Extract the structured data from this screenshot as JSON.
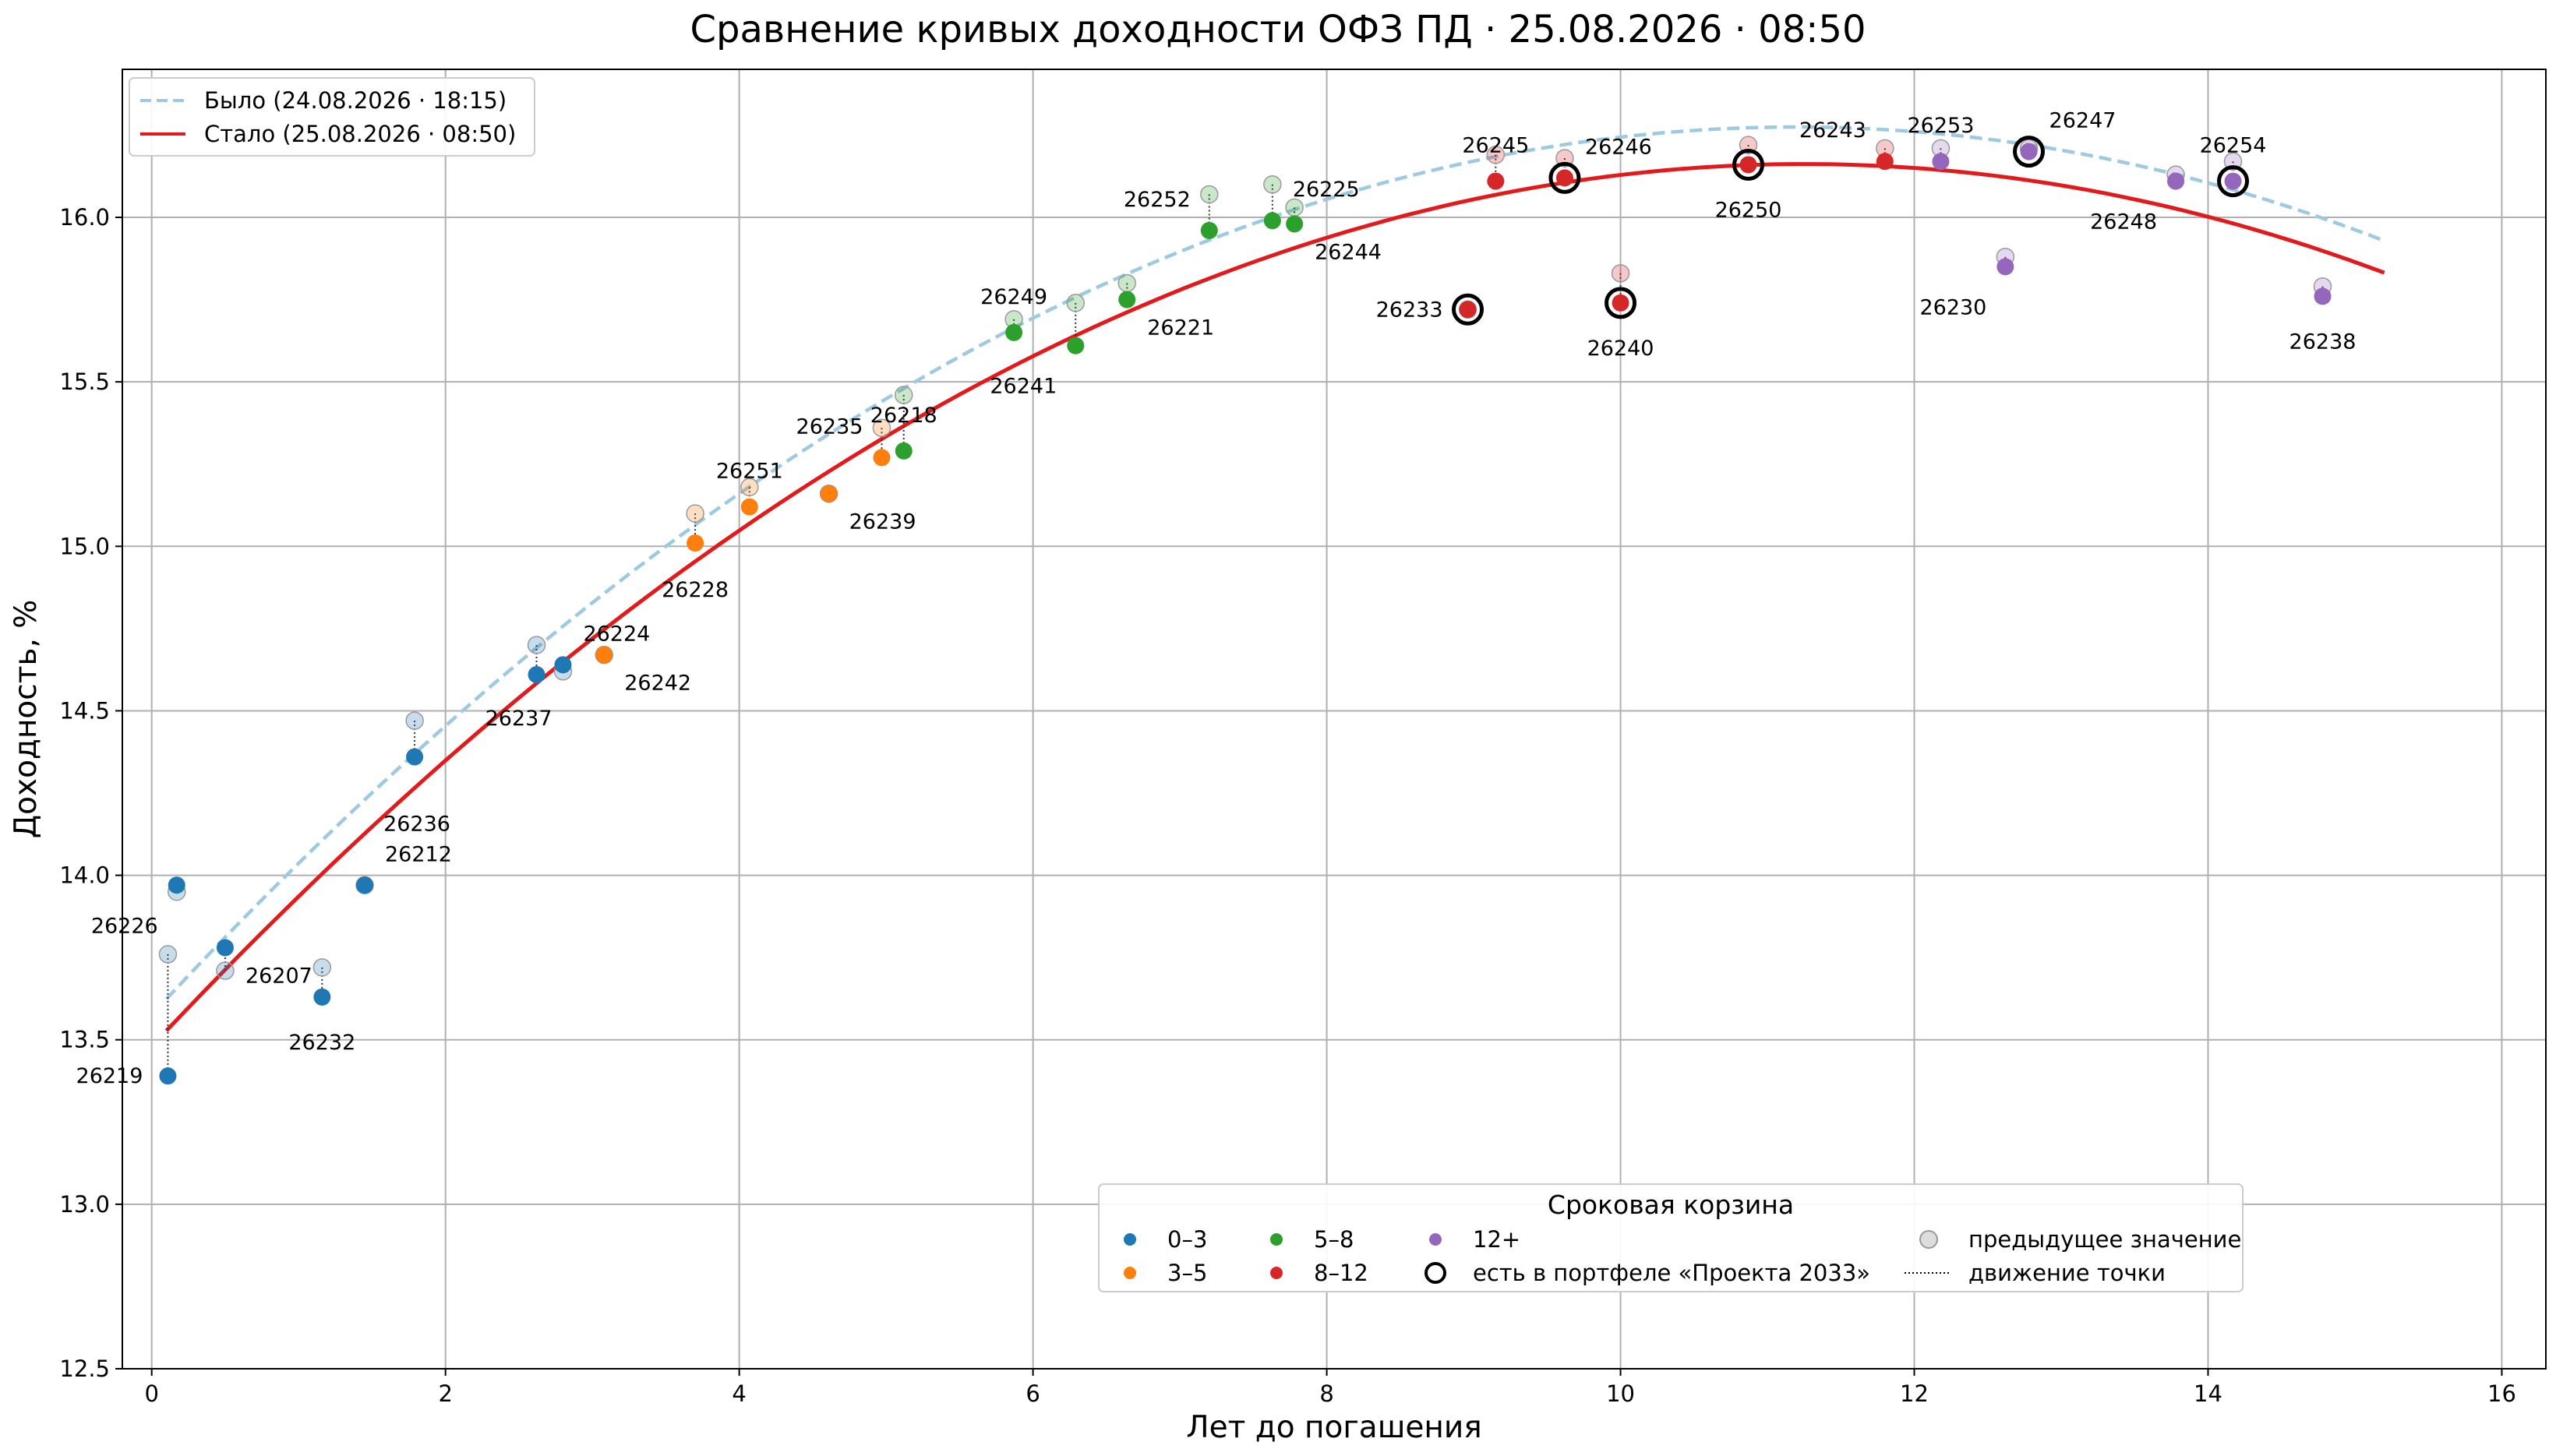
{
  "chart_data": {
    "type": "scatter",
    "title": "Сравнение кривых доходности ОФЗ ПД · 25.08.2026 · 08:50",
    "xlabel": "Лет до погашения",
    "ylabel": "Доходность, %",
    "xlim": [
      -0.2,
      16.3
    ],
    "ylim": [
      12.5,
      16.45
    ],
    "xticks": [
      0,
      2,
      4,
      6,
      8,
      10,
      12,
      14,
      16
    ],
    "yticks": [
      "12.5",
      "13.0",
      "13.5",
      "14.0",
      "14.5",
      "15.0",
      "15.5",
      "16.0"
    ],
    "grid": true,
    "legend_top_placement": "top-left",
    "legend_bottom_placement": "bottom-right",
    "curves": [
      {
        "name": "Было (24.08.2026 · 18:15)",
        "style": "dashed",
        "color": "#9ecae1",
        "coef": [
          13.576,
          0.4822,
          -0.02154
        ],
        "x_range": [
          0.1,
          15.2
        ]
      },
      {
        "name": "Стало (25.08.2026 · 08:50)",
        "style": "solid",
        "color": "#e31a1c",
        "coef": [
          13.48,
          0.4768,
          -0.02119
        ],
        "x_range": [
          0.1,
          15.2
        ]
      }
    ],
    "buckets": [
      {
        "name": "0–3",
        "color": "#1f77b4"
      },
      {
        "name": "3–5",
        "color": "#ff7f0e"
      },
      {
        "name": "5–8",
        "color": "#2ca02c"
      },
      {
        "name": "8–12",
        "color": "#d62728"
      },
      {
        "name": "12+",
        "color": "#9467bd"
      }
    ],
    "legend_extra": {
      "portfolio": "есть в портфеле «Проекта 2033»",
      "previous": "предыдущее значение",
      "movement": "движение точки"
    },
    "legend_title": "Сроковая корзина",
    "points": [
      {
        "label": "26219",
        "x": 0.11,
        "y": 13.39,
        "prev": 13.76,
        "bucket": 0,
        "portfolio": false,
        "lpos": "left"
      },
      {
        "label": "26226",
        "x": 0.17,
        "y": 13.97,
        "prev": 13.95,
        "bucket": 0,
        "portfolio": false,
        "lpos": "below-left"
      },
      {
        "label": "26207",
        "x": 0.5,
        "y": 13.78,
        "prev": 13.71,
        "bucket": 0,
        "portfolio": false,
        "lpos": "below-right"
      },
      {
        "label": "26232",
        "x": 1.16,
        "y": 13.63,
        "prev": 13.72,
        "bucket": 0,
        "portfolio": false,
        "lpos": "below"
      },
      {
        "label": "26212",
        "x": 1.45,
        "y": 13.97,
        "prev": 13.97,
        "bucket": 0,
        "portfolio": false,
        "lpos": "above-right"
      },
      {
        "label": "26236",
        "x": 1.79,
        "y": 14.36,
        "prev": 14.47,
        "bucket": 0,
        "portfolio": false,
        "lpos": "below-right2"
      },
      {
        "label": "26237",
        "x": 2.62,
        "y": 14.61,
        "prev": 14.7,
        "bucket": 0,
        "portfolio": false,
        "lpos": "below-left2"
      },
      {
        "label": "26224",
        "x": 2.8,
        "y": 14.64,
        "prev": 14.62,
        "bucket": 0,
        "portfolio": false,
        "lpos": "above-right"
      },
      {
        "label": "26242",
        "x": 3.08,
        "y": 14.67,
        "prev": 14.67,
        "bucket": 1,
        "portfolio": false,
        "lpos": "below-right"
      },
      {
        "label": "26228",
        "x": 3.7,
        "y": 15.01,
        "prev": 15.1,
        "bucket": 1,
        "portfolio": false,
        "lpos": "below2"
      },
      {
        "label": "26251",
        "x": 4.07,
        "y": 15.12,
        "prev": 15.18,
        "bucket": 1,
        "portfolio": false,
        "lpos": "above"
      },
      {
        "label": "26239",
        "x": 4.61,
        "y": 15.16,
        "prev": 15.16,
        "bucket": 1,
        "portfolio": false,
        "lpos": "below-right"
      },
      {
        "label": "26235",
        "x": 4.97,
        "y": 15.27,
        "prev": 15.36,
        "bucket": 1,
        "portfolio": false,
        "lpos": "above-left"
      },
      {
        "label": "26218",
        "x": 5.12,
        "y": 15.29,
        "prev": 15.46,
        "bucket": 2,
        "portfolio": false,
        "lpos": "above"
      },
      {
        "label": "26249",
        "x": 5.87,
        "y": 15.65,
        "prev": 15.69,
        "bucket": 2,
        "portfolio": false,
        "lpos": "above"
      },
      {
        "label": "26241",
        "x": 6.29,
        "y": 15.61,
        "prev": 15.74,
        "bucket": 2,
        "portfolio": false,
        "lpos": "below-left"
      },
      {
        "label": "26221",
        "x": 6.64,
        "y": 15.75,
        "prev": 15.8,
        "bucket": 2,
        "portfolio": false,
        "lpos": "below-right"
      },
      {
        "label": "26252",
        "x": 7.2,
        "y": 15.96,
        "prev": 16.07,
        "bucket": 2,
        "portfolio": false,
        "lpos": "above-left"
      },
      {
        "label": "26225",
        "x": 7.63,
        "y": 15.99,
        "prev": 16.1,
        "bucket": 2,
        "portfolio": false,
        "lpos": "above-right"
      },
      {
        "label": "26244",
        "x": 7.78,
        "y": 15.98,
        "prev": 16.03,
        "bucket": 2,
        "portfolio": false,
        "lpos": "below-right"
      },
      {
        "label": "26233",
        "x": 8.96,
        "y": 15.72,
        "prev": 15.72,
        "bucket": 3,
        "portfolio": true,
        "lpos": "left"
      },
      {
        "label": "26245",
        "x": 9.15,
        "y": 16.11,
        "prev": 16.19,
        "bucket": 3,
        "portfolio": false,
        "lpos": "above"
      },
      {
        "label": "26246",
        "x": 9.62,
        "y": 16.12,
        "prev": 16.18,
        "bucket": 3,
        "portfolio": true,
        "lpos": "above-right"
      },
      {
        "label": "26240",
        "x": 10.0,
        "y": 15.74,
        "prev": 15.83,
        "bucket": 3,
        "portfolio": true,
        "lpos": "below"
      },
      {
        "label": "26250",
        "x": 10.87,
        "y": 16.16,
        "prev": 16.22,
        "bucket": 3,
        "portfolio": true,
        "lpos": "below"
      },
      {
        "label": "26243",
        "x": 11.8,
        "y": 16.17,
        "prev": 16.21,
        "bucket": 3,
        "portfolio": false,
        "lpos": "above-left"
      },
      {
        "label": "26253",
        "x": 12.18,
        "y": 16.17,
        "prev": 16.21,
        "bucket": 4,
        "portfolio": false,
        "lpos": "above"
      },
      {
        "label": "26230",
        "x": 12.62,
        "y": 15.85,
        "prev": 15.88,
        "bucket": 4,
        "portfolio": false,
        "lpos": "below-left"
      },
      {
        "label": "26247",
        "x": 12.78,
        "y": 16.2,
        "prev": 16.21,
        "bucket": 4,
        "portfolio": true,
        "lpos": "above-right"
      },
      {
        "label": "26248",
        "x": 13.78,
        "y": 16.11,
        "prev": 16.13,
        "bucket": 4,
        "portfolio": false,
        "lpos": "below-left"
      },
      {
        "label": "26254",
        "x": 14.17,
        "y": 16.11,
        "prev": 16.17,
        "bucket": 4,
        "portfolio": true,
        "lpos": "above"
      },
      {
        "label": "26238",
        "x": 14.78,
        "y": 15.76,
        "prev": 15.79,
        "bucket": 4,
        "portfolio": false,
        "lpos": "below"
      }
    ]
  }
}
